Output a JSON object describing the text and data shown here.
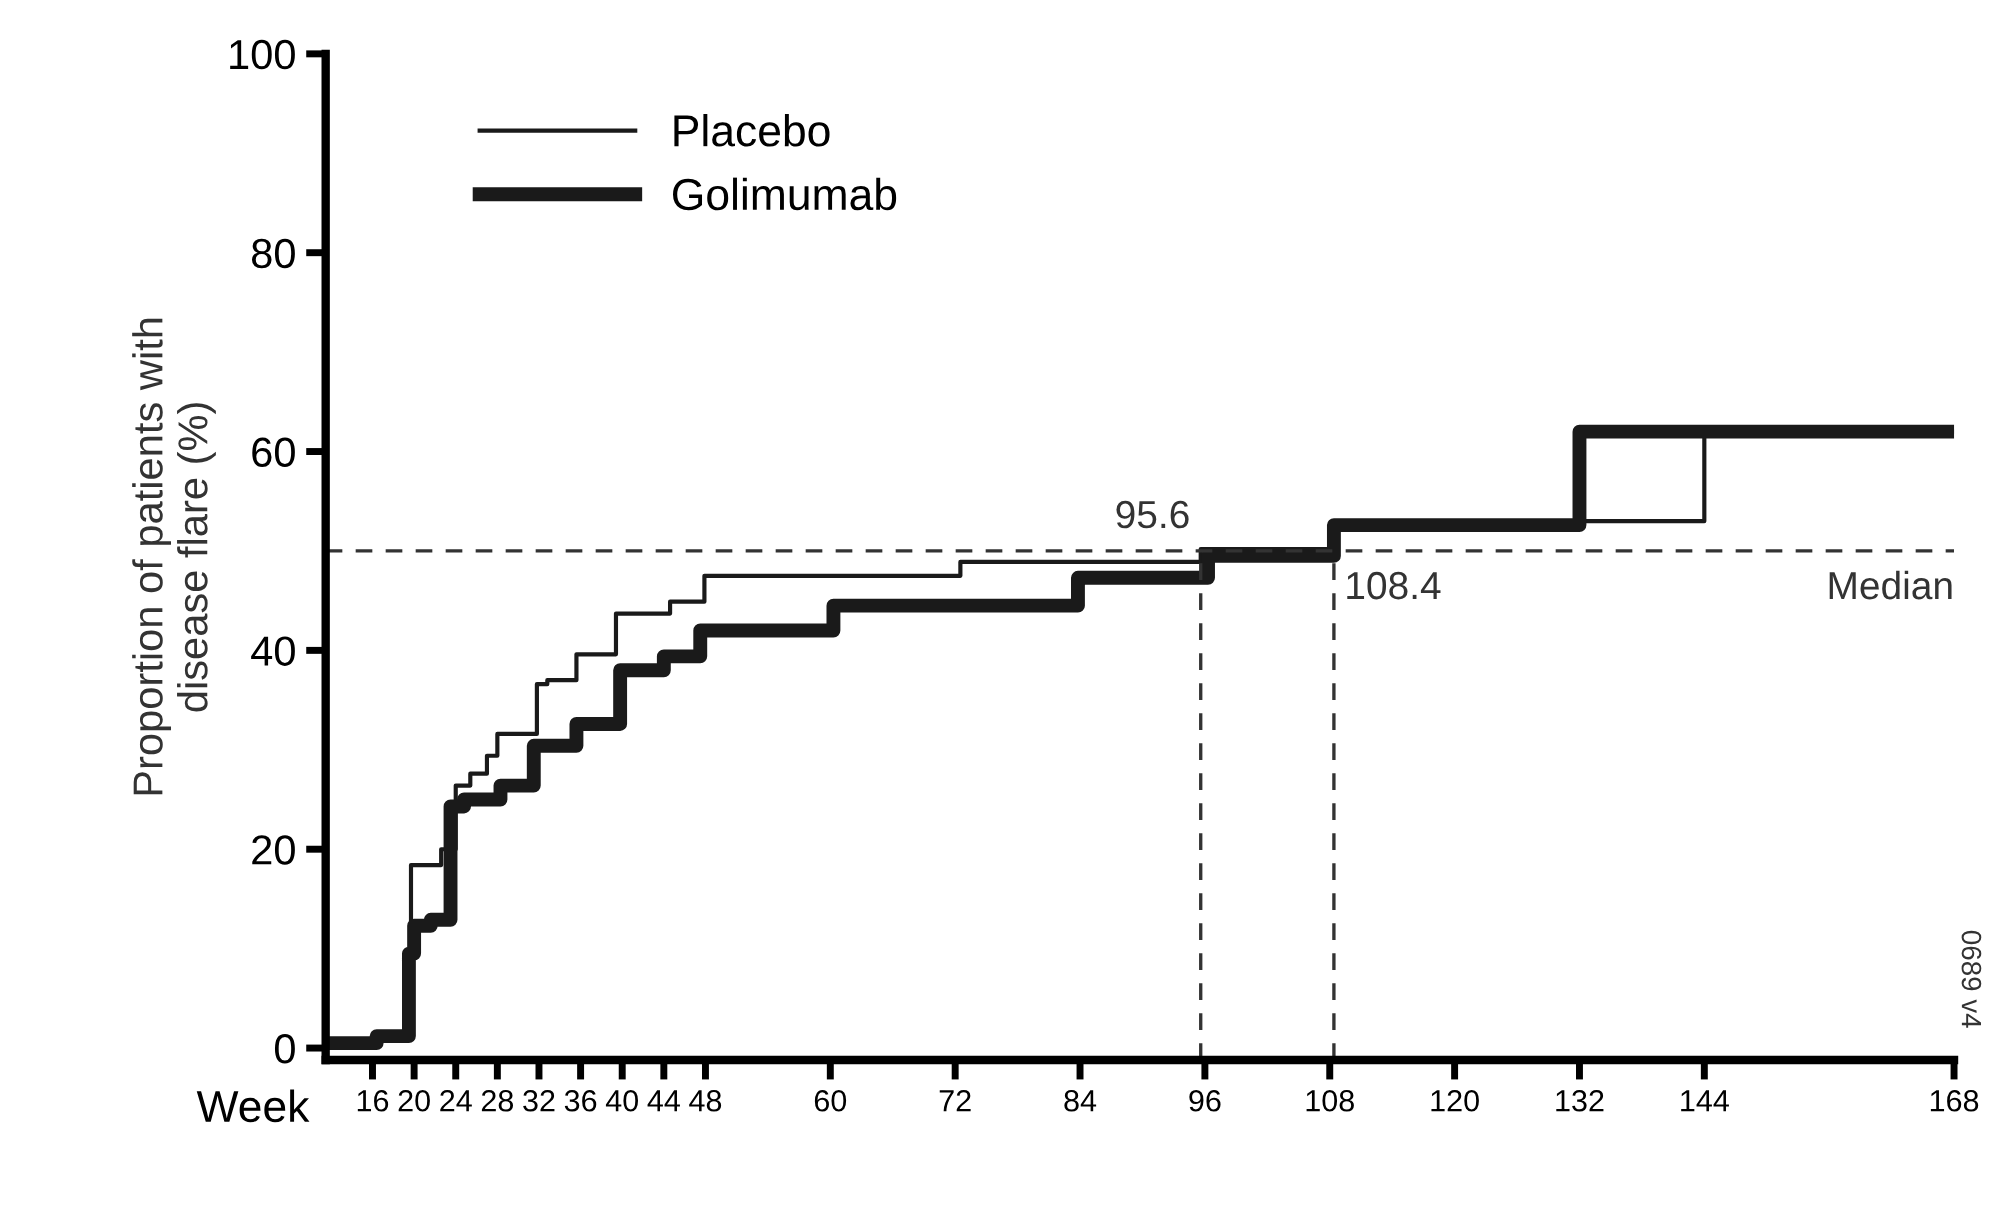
{
  "chart_data": {
    "type": "step",
    "ylabel": "Proportion of patients with\ndisease flare (%)",
    "xlabel": "Week",
    "xlim": [
      11.5,
      168
    ],
    "ylim": [
      -1.2,
      100
    ],
    "xticks": [
      16,
      20,
      24,
      28,
      32,
      36,
      40,
      44,
      48,
      60,
      72,
      84,
      96,
      108,
      120,
      132,
      144,
      168
    ],
    "yticks": [
      0,
      20,
      40,
      60,
      80,
      100
    ],
    "legend": "top left",
    "grid": false,
    "series": [
      {
        "name": "Placebo",
        "color": "#1a1a1a",
        "x": [
          11.5,
          16.4,
          19.7,
          22.6,
          24,
          25.4,
          27,
          28,
          31.8,
          32.8,
          35.6,
          39.4,
          44.6,
          47.9,
          72.5,
          95.6,
          108.4,
          144,
          168
        ],
        "values": [
          0.5,
          1.4,
          18.4,
          20,
          26.4,
          27.6,
          29.4,
          31.6,
          36.6,
          37,
          39.6,
          43.7,
          44.9,
          47.5,
          48.9,
          50.2,
          53,
          62,
          62
        ]
      },
      {
        "name": "Golimumab",
        "color": "#1a1a1a",
        "x": [
          11.5,
          16.4,
          19.5,
          20,
          21.6,
          23.5,
          24.8,
          28.3,
          31.5,
          35.6,
          39.8,
          44,
          47.5,
          60.3,
          83.8,
          96.3,
          108.4,
          132,
          168
        ],
        "values": [
          0.5,
          1.2,
          9.5,
          12.3,
          12.9,
          24.3,
          25,
          26.4,
          30.4,
          32.6,
          38,
          39.4,
          42,
          44.5,
          47.3,
          49.5,
          52.6,
          62,
          62
        ]
      }
    ],
    "ref_lines": [
      {
        "axis": "y",
        "value": 50,
        "label": "Median",
        "color": "#333333",
        "line_style": "dashed"
      },
      {
        "axis": "x",
        "value": 95.6,
        "label": "95.6",
        "color": "#333333",
        "line_style": "dashed"
      },
      {
        "axis": "x",
        "value": 108.4,
        "label": "108.4",
        "color": "#333333",
        "line_style": "dashed"
      }
    ],
    "annotations": [
      "0689 v4"
    ]
  }
}
